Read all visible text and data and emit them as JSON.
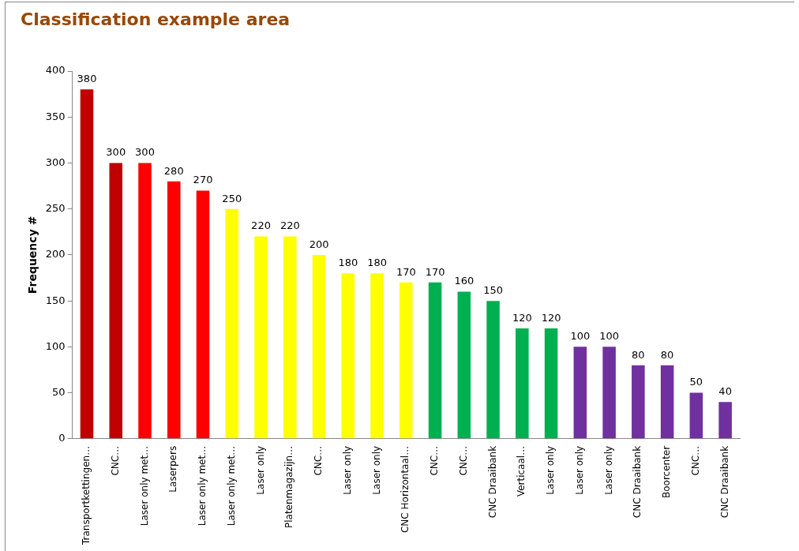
{
  "chart_data": {
    "type": "bar",
    "title": "Classification example area",
    "ylabel": "Frequency #",
    "categories": [
      "Transportkettingen…",
      "CNC…",
      "Laser only met…",
      "Laserpers",
      "Laser only met…",
      "Laser only met…",
      "Laser only",
      "Platenmagazijn…",
      "CNC…",
      "Laser only",
      "Laser only",
      "CNC Horizontaal…",
      "CNC…",
      "CNC…",
      "CNC Draaibank",
      "Verticaal…",
      "Laser only",
      "Laser only",
      "Laser only",
      "CNC Draaibank",
      "Boorcenter",
      "CNC…",
      "CNC Draaibank"
    ],
    "values": [
      380,
      300,
      300,
      280,
      270,
      250,
      220,
      220,
      200,
      180,
      180,
      170,
      170,
      160,
      150,
      120,
      120,
      100,
      100,
      80,
      80,
      50,
      40
    ],
    "colors": [
      "#c00000",
      "#c00000",
      "#ff0000",
      "#ff0000",
      "#ff0000",
      "#ffff00",
      "#ffff00",
      "#ffff00",
      "#ffff00",
      "#ffff00",
      "#ffff00",
      "#ffff00",
      "#00b050",
      "#00b050",
      "#00b050",
      "#00b050",
      "#00b050",
      "#7030a0",
      "#7030a0",
      "#7030a0",
      "#7030a0",
      "#7030a0",
      "#7030a0"
    ],
    "ylim": [
      0,
      400
    ],
    "yticks": [
      0,
      50,
      100,
      150,
      200,
      250,
      300,
      350,
      400
    ],
    "data_labels": true,
    "grid": false,
    "legend": false
  }
}
